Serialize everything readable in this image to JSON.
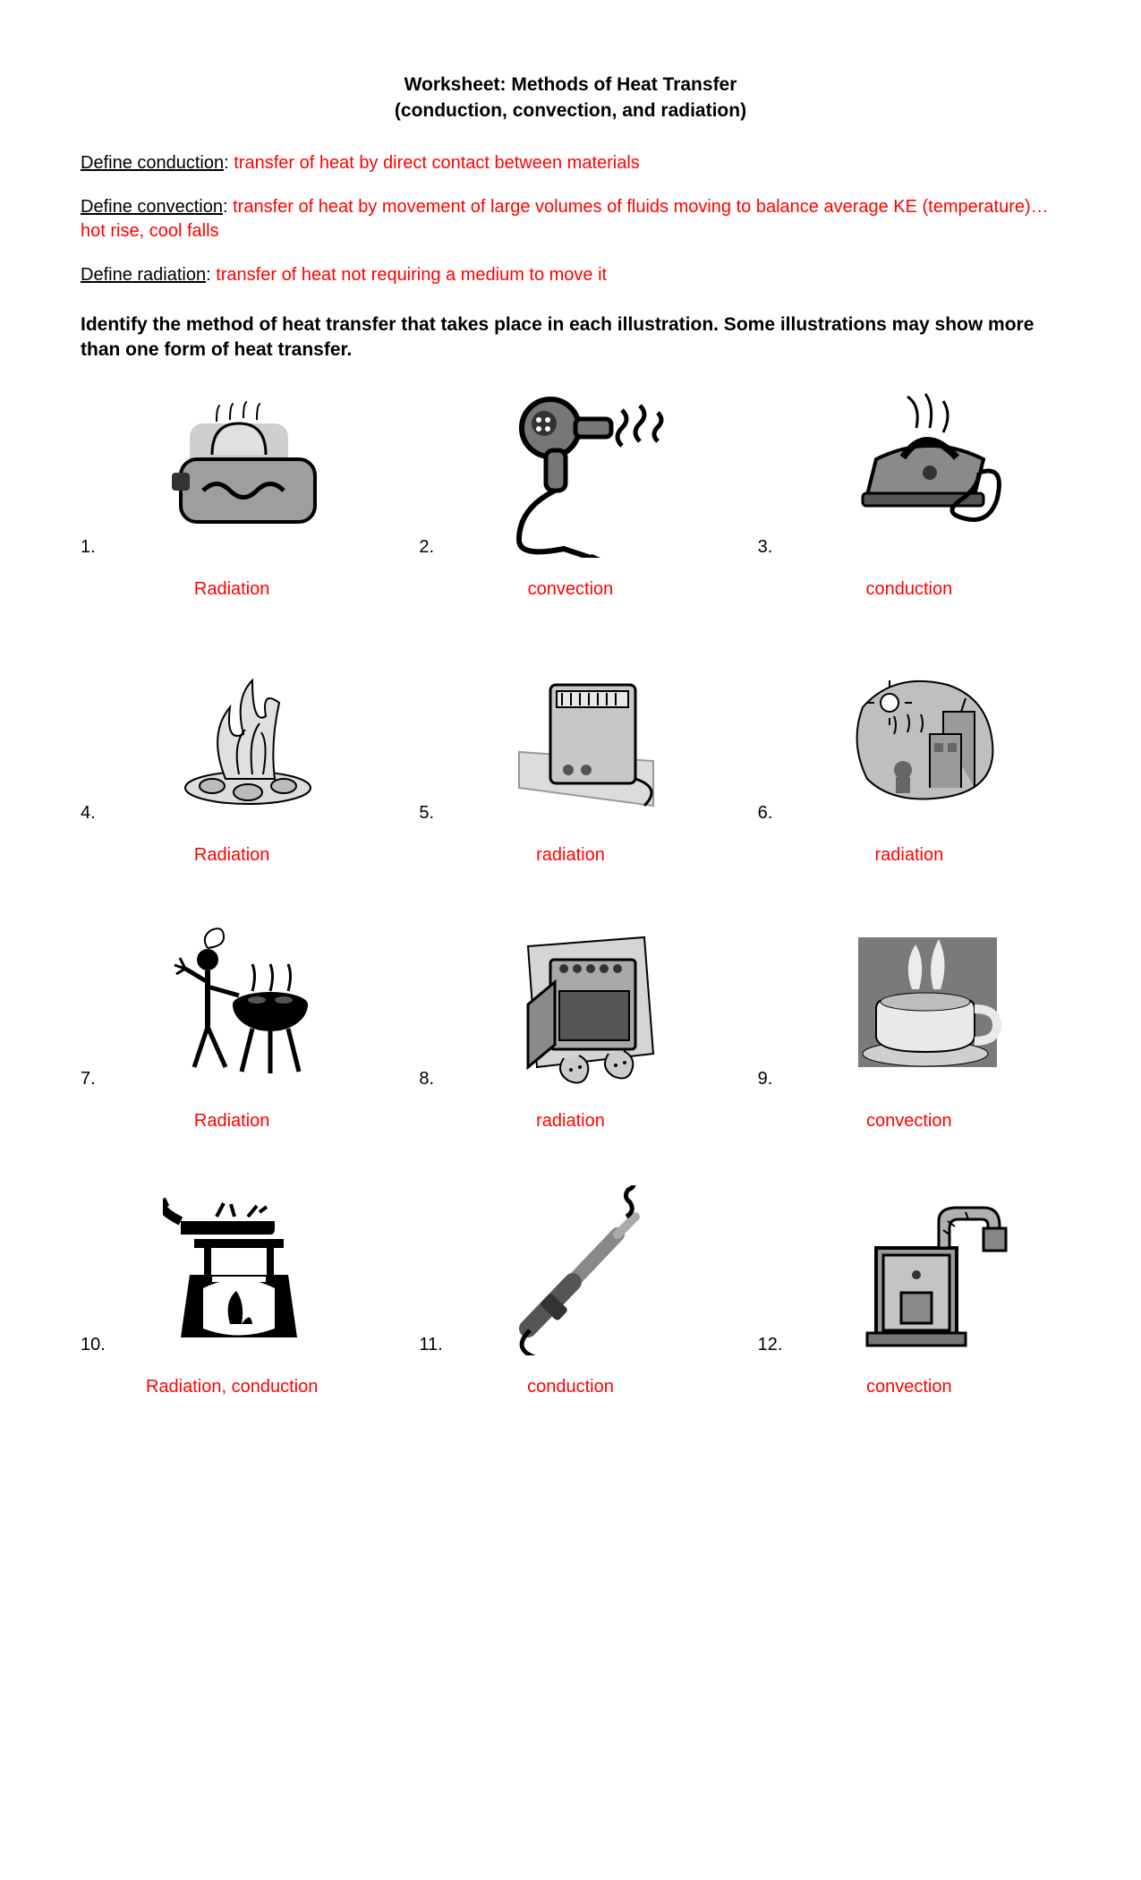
{
  "title_line1": "Worksheet:  Methods of Heat Transfer",
  "title_line2": "(conduction, convection, and radiation)",
  "definitions": [
    {
      "label": "Define conduction",
      "answer": "transfer of heat by direct contact between materials"
    },
    {
      "label": "Define convection",
      "answer": "transfer of heat by movement of large volumes of fluids moving to balance average KE (temperature)… hot rise, cool falls"
    },
    {
      "label": "Define radiation",
      "answer": "transfer of heat not requiring a medium to move it"
    }
  ],
  "instructions": "Identify the method of heat transfer that takes place in each illustration.  Some illustrations may show more than one form of heat transfer.",
  "items": [
    {
      "n": "1.",
      "answer": "Radiation",
      "icon": "toaster"
    },
    {
      "n": "2.",
      "answer": "convection",
      "icon": "hairdryer"
    },
    {
      "n": "3.",
      "answer": "conduction",
      "icon": "iron"
    },
    {
      "n": "4.",
      "answer": "Radiation",
      "icon": "campfire"
    },
    {
      "n": "5.",
      "answer": "radiation",
      "icon": "spaceheater"
    },
    {
      "n": "6.",
      "answer": "radiation",
      "icon": "sunbeach"
    },
    {
      "n": "7.",
      "answer": "Radiation",
      "icon": "grill"
    },
    {
      "n": "8.",
      "answer": "radiation",
      "icon": "oven"
    },
    {
      "n": "9.",
      "answer": "convection",
      "icon": "coffee"
    },
    {
      "n": "10.",
      "answer": "Radiation, conduction",
      "icon": "stovepan"
    },
    {
      "n": "11.",
      "answer": "conduction",
      "icon": "curlingiron"
    },
    {
      "n": "12.",
      "answer": "convection",
      "icon": "furnace"
    }
  ],
  "style": {
    "answer_color": "#ff0000",
    "text_color": "#000000",
    "bg": "#ffffff",
    "title_fontsize": 21,
    "body_fontsize": 20,
    "grid_cols": 3,
    "row_gap": 60,
    "col_gap": 40,
    "illus_height": 190
  }
}
